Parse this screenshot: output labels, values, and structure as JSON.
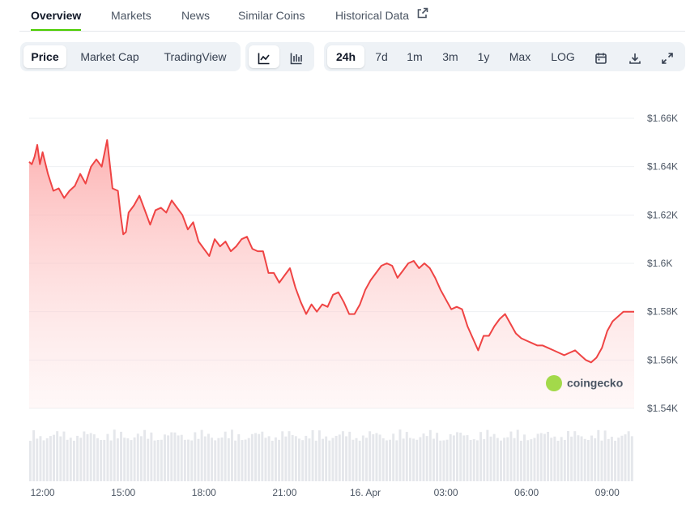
{
  "tabs": [
    {
      "label": "Overview",
      "active": true
    },
    {
      "label": "Markets"
    },
    {
      "label": "News"
    },
    {
      "label": "Similar Coins"
    },
    {
      "label": "Historical Data"
    }
  ],
  "chart_kind": [
    "Price",
    "Market Cap",
    "TradingView"
  ],
  "chart_style_icons": [
    "line-chart-icon",
    "candlestick-chart-icon"
  ],
  "ranges": [
    "24h",
    "7d",
    "1m",
    "3m",
    "1y",
    "Max",
    "LOG"
  ],
  "tool_icons": [
    "calendar-icon",
    "download-icon",
    "expand-icon"
  ],
  "watermark": "coingecko",
  "colors": {
    "line": "#ef4444",
    "accent": "#4bcc00"
  },
  "chart_data": {
    "type": "area",
    "currency": "$",
    "y_ticks": [
      "$1.66K",
      "$1.64K",
      "$1.62K",
      "$1.6K",
      "$1.58K",
      "$1.56K",
      "$1.54K"
    ],
    "ylim": [
      1540,
      1660
    ],
    "x_ticks": [
      "12:00",
      "15:00",
      "18:00",
      "21:00",
      "16. Apr",
      "03:00",
      "06:00",
      "09:00"
    ],
    "x_tick_hours": [
      12,
      15,
      18,
      21,
      24,
      27,
      30,
      33
    ],
    "x_range_hours": [
      11.5,
      34.0
    ],
    "series": [
      {
        "x": [
          11.5,
          11.6,
          11.7,
          11.8,
          11.9,
          12.0,
          12.2,
          12.4,
          12.6,
          12.8,
          13.0,
          13.2,
          13.4,
          13.6,
          13.8,
          14.0,
          14.2,
          14.4,
          14.6,
          14.8,
          14.9,
          15.0,
          15.1,
          15.2,
          15.4,
          15.6,
          15.8,
          16.0,
          16.2,
          16.4,
          16.6,
          16.8,
          17.0,
          17.2,
          17.4,
          17.6,
          17.8,
          18.0,
          18.2,
          18.4,
          18.6,
          18.8,
          19.0,
          19.2,
          19.4,
          19.6,
          19.8,
          20.0,
          20.2,
          20.4,
          20.6,
          20.8,
          21.0,
          21.2,
          21.4,
          21.6,
          21.8,
          22.0,
          22.2,
          22.4,
          22.6,
          22.8,
          23.0,
          23.2,
          23.4,
          23.6,
          23.8,
          24.0,
          24.2,
          24.4,
          24.6,
          24.8,
          25.0,
          25.2,
          25.4,
          25.6,
          25.8,
          26.0,
          26.2,
          26.4,
          26.6,
          26.8,
          27.0,
          27.2,
          27.4,
          27.6,
          27.8,
          28.0,
          28.2,
          28.4,
          28.6,
          28.8,
          29.0,
          29.2,
          29.4,
          29.6,
          29.8,
          30.0,
          30.2,
          30.4,
          30.6,
          30.8,
          31.0,
          31.2,
          31.4,
          31.6,
          31.8,
          32.0,
          32.2,
          32.4,
          32.6,
          32.8,
          33.0,
          33.2,
          33.4,
          33.6,
          33.8,
          34.0
        ],
        "values": [
          1642,
          1641,
          1644,
          1649,
          1641,
          1646,
          1637,
          1630,
          1631,
          1627,
          1630,
          1632,
          1637,
          1633,
          1640,
          1643,
          1640,
          1651,
          1631,
          1630,
          1620,
          1612,
          1613,
          1621,
          1624,
          1628,
          1622,
          1616,
          1622,
          1623,
          1621,
          1626,
          1623,
          1620,
          1614,
          1617,
          1609,
          1606,
          1603,
          1610,
          1607,
          1609,
          1605,
          1607,
          1610,
          1611,
          1606,
          1605,
          1605,
          1596,
          1596,
          1592,
          1595,
          1598,
          1590,
          1584,
          1579,
          1583,
          1580,
          1583,
          1582,
          1587,
          1588,
          1584,
          1579,
          1579,
          1583,
          1589,
          1593,
          1596,
          1599,
          1600,
          1599,
          1594,
          1597,
          1600,
          1601,
          1598,
          1600,
          1598,
          1594,
          1589,
          1585,
          1581,
          1582,
          1581,
          1574,
          1569,
          1564,
          1570,
          1570,
          1574,
          1577,
          1579,
          1575,
          1571,
          1569,
          1568,
          1567,
          1566,
          1566,
          1565,
          1564,
          1563,
          1562,
          1563,
          1564,
          1562,
          1560,
          1559,
          1561,
          1565,
          1572,
          1576,
          1578,
          1580,
          1580,
          1580
        ]
      }
    ],
    "volume_bars": 180
  }
}
